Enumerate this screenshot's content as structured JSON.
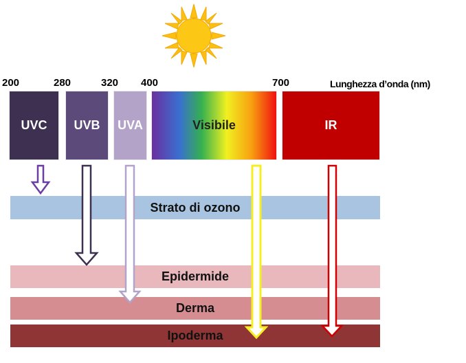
{
  "wavelengths": {
    "w200": "200",
    "w280": "280",
    "w320": "320",
    "w400": "400",
    "w700": "700",
    "axis_label": "Lunghezza d’onda (nm)"
  },
  "bands": {
    "uvc": {
      "label": "UVC",
      "color": "#3d3050"
    },
    "uvb": {
      "label": "UVB",
      "color": "#5c4a7a"
    },
    "uva": {
      "label": "UVA",
      "color": "#b3a3c8"
    },
    "visible": {
      "label": "Visibile",
      "gradient": [
        "#6b2fa0",
        "#3a6fd0",
        "#35b050",
        "#f0f020",
        "#f8a010",
        "#f01010"
      ]
    },
    "ir": {
      "label": "IR",
      "color": "#c00000"
    }
  },
  "layers": {
    "ozone": {
      "label": "Strato di ozono",
      "color": "#a9c4e0"
    },
    "epidermis": {
      "label": "Epidermide",
      "color": "#e8b8bc"
    },
    "dermis": {
      "label": "Derma",
      "color": "#d68d92"
    },
    "hypodermis": {
      "label": "Ipoderma",
      "color": "#8f3535"
    }
  },
  "sun": {
    "icon": "sun-icon",
    "color": "#ffcc00"
  }
}
